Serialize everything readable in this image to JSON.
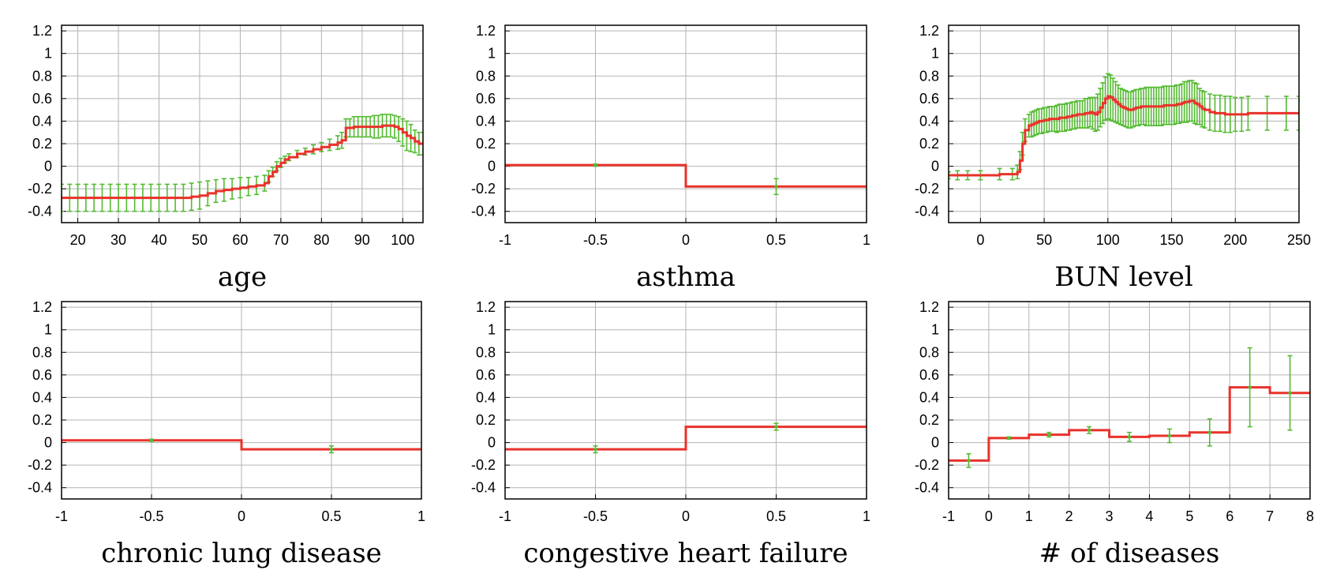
{
  "figure": {
    "style": {
      "line_color": "#e8322a",
      "errorbar_color": "#55bb33",
      "grid_color": "#b3b3b3"
    }
  },
  "chart_data": [
    {
      "type": "line",
      "title": "age",
      "xlim": [
        16,
        105
      ],
      "ylim": [
        -0.5,
        1.25
      ],
      "xticks": [
        20,
        30,
        40,
        50,
        60,
        70,
        80,
        90,
        100
      ],
      "xtick_labels": [
        "20",
        "30",
        "40",
        "50",
        "60",
        "70",
        "80",
        "90",
        "100"
      ],
      "yticks": [
        -0.4,
        -0.2,
        0,
        0.2,
        0.4,
        0.6,
        0.8,
        1,
        1.2
      ],
      "ytick_labels": [
        "-0.4",
        "-0.2",
        "0",
        "0.2",
        "0.4",
        "0.6",
        "0.8",
        "1",
        "1.2"
      ],
      "grid": true,
      "series": [
        {
          "style": "step-with-errorbars",
          "x": [
            16,
            18,
            20,
            22,
            24,
            26,
            28,
            30,
            32,
            34,
            36,
            38,
            40,
            42,
            44,
            46,
            48,
            50,
            52,
            54,
            56,
            58,
            60,
            62,
            64,
            66,
            67,
            68,
            69,
            70,
            71,
            72,
            74,
            76,
            78,
            80,
            82,
            84,
            85,
            86,
            87,
            88,
            89,
            90,
            91,
            92,
            93,
            94,
            95,
            96,
            97,
            98,
            99,
            100,
            101,
            102,
            103,
            104,
            105
          ],
          "y": [
            -0.28,
            -0.28,
            -0.28,
            -0.28,
            -0.28,
            -0.28,
            -0.28,
            -0.28,
            -0.28,
            -0.28,
            -0.28,
            -0.28,
            -0.28,
            -0.28,
            -0.28,
            -0.28,
            -0.27,
            -0.26,
            -0.24,
            -0.22,
            -0.21,
            -0.2,
            -0.19,
            -0.18,
            -0.17,
            -0.15,
            -0.09,
            -0.05,
            0.0,
            0.03,
            0.06,
            0.08,
            0.11,
            0.13,
            0.15,
            0.17,
            0.19,
            0.21,
            0.23,
            0.34,
            0.34,
            0.35,
            0.35,
            0.35,
            0.35,
            0.35,
            0.35,
            0.35,
            0.36,
            0.36,
            0.36,
            0.35,
            0.33,
            0.3,
            0.27,
            0.25,
            0.22,
            0.2,
            0.2
          ],
          "err": [
            0.12,
            0.12,
            0.12,
            0.12,
            0.12,
            0.12,
            0.12,
            0.12,
            0.12,
            0.12,
            0.12,
            0.12,
            0.12,
            0.12,
            0.12,
            0.12,
            0.12,
            0.12,
            0.11,
            0.1,
            0.1,
            0.09,
            0.09,
            0.08,
            0.08,
            0.07,
            0.05,
            0.04,
            0.04,
            0.04,
            0.03,
            0.03,
            0.03,
            0.03,
            0.04,
            0.04,
            0.05,
            0.06,
            0.07,
            0.08,
            0.08,
            0.09,
            0.09,
            0.09,
            0.09,
            0.09,
            0.1,
            0.1,
            0.1,
            0.1,
            0.1,
            0.1,
            0.11,
            0.12,
            0.13,
            0.12,
            0.1,
            0.1,
            0.1
          ]
        }
      ]
    },
    {
      "type": "line",
      "title": "asthma",
      "xlim": [
        -1,
        1
      ],
      "ylim": [
        -0.5,
        1.25
      ],
      "xticks": [
        -1,
        -0.5,
        0,
        0.5,
        1
      ],
      "xtick_labels": [
        "-1",
        "-0.5",
        "0",
        "0.5",
        "1"
      ],
      "yticks": [
        -0.4,
        -0.2,
        0,
        0.2,
        0.4,
        0.6,
        0.8,
        1,
        1.2
      ],
      "ytick_labels": [
        "-0.4",
        "-0.2",
        "0",
        "0.2",
        "0.4",
        "0.6",
        "0.8",
        "1",
        "1.2"
      ],
      "grid": true,
      "series": [
        {
          "style": "step-bins",
          "bins": [
            [
              -1,
              0
            ],
            [
              0,
              1
            ]
          ],
          "y": [
            0.01,
            -0.18
          ],
          "points": [
            {
              "x": -0.5,
              "y": 0.01,
              "err": 0.01
            },
            {
              "x": 0.5,
              "y": -0.18,
              "err": 0.07
            }
          ]
        }
      ]
    },
    {
      "type": "line",
      "title": "BUN level",
      "xlim": [
        -25,
        250
      ],
      "ylim": [
        -0.5,
        1.25
      ],
      "xticks": [
        0,
        50,
        100,
        150,
        200,
        250
      ],
      "xtick_labels": [
        "0",
        "50",
        "100",
        "150",
        "200",
        "250"
      ],
      "yticks": [
        -0.4,
        -0.2,
        0,
        0.2,
        0.4,
        0.6,
        0.8,
        1,
        1.2
      ],
      "ytick_labels": [
        "-0.4",
        "-0.2",
        "0",
        "0.2",
        "0.4",
        "0.6",
        "0.8",
        "1",
        "1.2"
      ],
      "grid": true,
      "series": [
        {
          "style": "step-with-errorbars",
          "x": [
            -25,
            -18,
            -10,
            0,
            15,
            25,
            29,
            31,
            33,
            35,
            38,
            40,
            42,
            44,
            46,
            48,
            50,
            52,
            54,
            56,
            58,
            60,
            62,
            64,
            66,
            68,
            70,
            72,
            74,
            76,
            78,
            80,
            82,
            84,
            86,
            88,
            90,
            92,
            94,
            96,
            98,
            100,
            102,
            104,
            106,
            108,
            110,
            112,
            114,
            116,
            118,
            120,
            122,
            124,
            126,
            128,
            130,
            132,
            134,
            136,
            138,
            140,
            142,
            144,
            146,
            148,
            150,
            152,
            154,
            156,
            158,
            160,
            162,
            164,
            166,
            168,
            170,
            172,
            174,
            176,
            180,
            184,
            188,
            192,
            196,
            200,
            205,
            210,
            225,
            240,
            250
          ],
          "y": [
            -0.08,
            -0.08,
            -0.08,
            -0.08,
            -0.07,
            -0.07,
            -0.05,
            0.05,
            0.2,
            0.32,
            0.36,
            0.37,
            0.38,
            0.39,
            0.4,
            0.4,
            0.41,
            0.41,
            0.42,
            0.42,
            0.42,
            0.42,
            0.43,
            0.43,
            0.43,
            0.44,
            0.44,
            0.45,
            0.45,
            0.46,
            0.46,
            0.46,
            0.47,
            0.47,
            0.48,
            0.47,
            0.46,
            0.48,
            0.52,
            0.56,
            0.6,
            0.62,
            0.61,
            0.59,
            0.57,
            0.55,
            0.53,
            0.52,
            0.51,
            0.5,
            0.5,
            0.51,
            0.52,
            0.52,
            0.53,
            0.53,
            0.53,
            0.53,
            0.53,
            0.53,
            0.53,
            0.53,
            0.53,
            0.54,
            0.54,
            0.54,
            0.54,
            0.54,
            0.55,
            0.55,
            0.56,
            0.57,
            0.57,
            0.58,
            0.58,
            0.56,
            0.55,
            0.53,
            0.51,
            0.5,
            0.48,
            0.47,
            0.47,
            0.46,
            0.46,
            0.46,
            0.46,
            0.47,
            0.47,
            0.47,
            0.47
          ],
          "err": [
            0.03,
            0.04,
            0.04,
            0.04,
            0.05,
            0.05,
            0.06,
            0.08,
            0.1,
            0.1,
            0.1,
            0.11,
            0.11,
            0.11,
            0.11,
            0.11,
            0.11,
            0.11,
            0.11,
            0.11,
            0.11,
            0.12,
            0.12,
            0.12,
            0.12,
            0.12,
            0.12,
            0.12,
            0.12,
            0.12,
            0.12,
            0.12,
            0.13,
            0.13,
            0.13,
            0.14,
            0.15,
            0.16,
            0.17,
            0.18,
            0.19,
            0.2,
            0.2,
            0.19,
            0.18,
            0.17,
            0.16,
            0.16,
            0.16,
            0.16,
            0.16,
            0.16,
            0.16,
            0.16,
            0.16,
            0.16,
            0.17,
            0.17,
            0.17,
            0.17,
            0.17,
            0.17,
            0.17,
            0.17,
            0.17,
            0.17,
            0.17,
            0.17,
            0.17,
            0.17,
            0.17,
            0.18,
            0.18,
            0.18,
            0.18,
            0.18,
            0.18,
            0.16,
            0.16,
            0.16,
            0.16,
            0.16,
            0.16,
            0.16,
            0.16,
            0.15,
            0.15,
            0.15,
            0.15,
            0.15,
            0.15
          ]
        }
      ]
    },
    {
      "type": "line",
      "title": "chronic lung disease",
      "xlim": [
        -1,
        1
      ],
      "ylim": [
        -0.5,
        1.25
      ],
      "xticks": [
        -1,
        -0.5,
        0,
        0.5,
        1
      ],
      "xtick_labels": [
        "-1",
        "-0.5",
        "0",
        "0.5",
        "1"
      ],
      "yticks": [
        -0.4,
        -0.2,
        0,
        0.2,
        0.4,
        0.6,
        0.8,
        1,
        1.2
      ],
      "ytick_labels": [
        "-0.4",
        "-0.2",
        "0",
        "0.2",
        "0.4",
        "0.6",
        "0.8",
        "1",
        "1.2"
      ],
      "grid": true,
      "series": [
        {
          "style": "step-bins",
          "bins": [
            [
              -1,
              0
            ],
            [
              0,
              1
            ]
          ],
          "y": [
            0.02,
            -0.06
          ],
          "points": [
            {
              "x": -0.5,
              "y": 0.02,
              "err": 0.01
            },
            {
              "x": 0.5,
              "y": -0.06,
              "err": 0.03
            }
          ]
        }
      ]
    },
    {
      "type": "line",
      "title": "congestive heart failure",
      "xlim": [
        -1,
        1
      ],
      "ylim": [
        -0.5,
        1.25
      ],
      "xticks": [
        -1,
        -0.5,
        0,
        0.5,
        1
      ],
      "xtick_labels": [
        "-1",
        "-0.5",
        "0",
        "0.5",
        "1"
      ],
      "yticks": [
        -0.4,
        -0.2,
        0,
        0.2,
        0.4,
        0.6,
        0.8,
        1,
        1.2
      ],
      "ytick_labels": [
        "-0.4",
        "-0.2",
        "0",
        "0.2",
        "0.4",
        "0.6",
        "0.8",
        "1",
        "1.2"
      ],
      "grid": true,
      "series": [
        {
          "style": "step-bins",
          "bins": [
            [
              -1,
              0
            ],
            [
              0,
              1
            ]
          ],
          "y": [
            -0.06,
            0.14
          ],
          "points": [
            {
              "x": -0.5,
              "y": -0.06,
              "err": 0.03
            },
            {
              "x": 0.5,
              "y": 0.14,
              "err": 0.03
            }
          ]
        }
      ]
    },
    {
      "type": "line",
      "title": "# of diseases",
      "xlim": [
        -1,
        8
      ],
      "ylim": [
        -0.5,
        1.25
      ],
      "xticks": [
        -1,
        0,
        1,
        2,
        3,
        4,
        5,
        6,
        7,
        8
      ],
      "xtick_labels": [
        "-1",
        "0",
        "1",
        "2",
        "3",
        "4",
        "5",
        "6",
        "7",
        "8"
      ],
      "yticks": [
        -0.4,
        -0.2,
        0,
        0.2,
        0.4,
        0.6,
        0.8,
        1,
        1.2
      ],
      "ytick_labels": [
        "-0.4",
        "-0.2",
        "0",
        "0.2",
        "0.4",
        "0.6",
        "0.8",
        "1",
        "1.2"
      ],
      "grid": true,
      "series": [
        {
          "style": "step-bins",
          "bins": [
            [
              -1,
              0
            ],
            [
              0,
              1
            ],
            [
              1,
              2
            ],
            [
              2,
              3
            ],
            [
              3,
              4
            ],
            [
              4,
              5
            ],
            [
              5,
              6
            ],
            [
              6,
              7
            ],
            [
              7,
              8
            ]
          ],
          "y": [
            -0.16,
            0.04,
            0.07,
            0.11,
            0.05,
            0.06,
            0.09,
            0.49,
            0.44
          ],
          "points": [
            {
              "x": -0.5,
              "y": -0.16,
              "err": 0.06
            },
            {
              "x": 0.5,
              "y": 0.04,
              "err": 0.01
            },
            {
              "x": 1.5,
              "y": 0.07,
              "err": 0.02
            },
            {
              "x": 2.5,
              "y": 0.11,
              "err": 0.03
            },
            {
              "x": 3.5,
              "y": 0.05,
              "err": 0.04
            },
            {
              "x": 4.5,
              "y": 0.06,
              "err": 0.06
            },
            {
              "x": 5.5,
              "y": 0.09,
              "err": 0.12
            },
            {
              "x": 6.5,
              "y": 0.49,
              "err": 0.35
            },
            {
              "x": 7.5,
              "y": 0.44,
              "err": 0.33
            }
          ]
        }
      ]
    }
  ]
}
